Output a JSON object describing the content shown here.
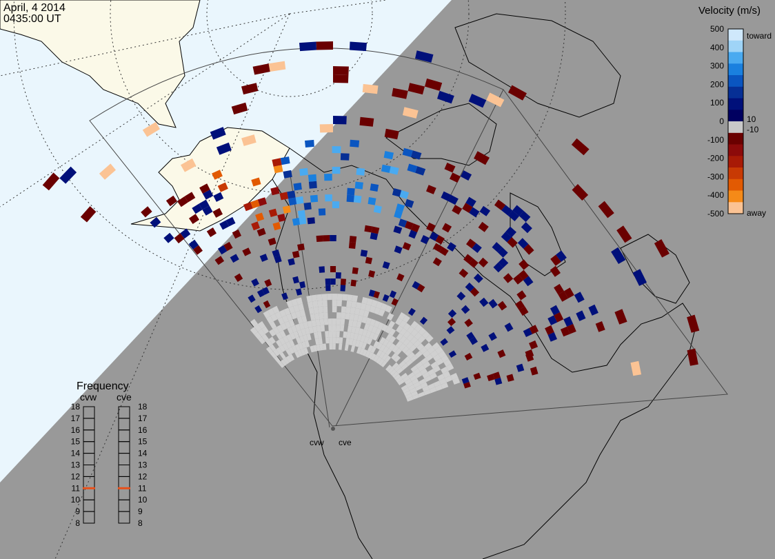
{
  "header": {
    "date": "April, 4 2014",
    "time": "0435:00 UT"
  },
  "colors": {
    "night": "#999999",
    "day_ocean": "#eaf6fd",
    "day_land": "#fbf9e8",
    "gate": "#d0d0d0",
    "grid": "#333333"
  },
  "colorbar": {
    "title": "Velocity (m/s)",
    "toward_label": "toward",
    "away_label": "away",
    "ticks": [
      "500",
      "400",
      "300",
      "200",
      "100",
      "0",
      "-100",
      "-200",
      "-300",
      "-400",
      "-500"
    ],
    "small_pos": "10",
    "small_neg": "-10",
    "colors": [
      "#cfe8fb",
      "#9fd4f7",
      "#4aaaf0",
      "#1a80df",
      "#0a55c0",
      "#062f95",
      "#00107a",
      "#000060",
      "#c9c9c9",
      "#6a0000",
      "#8c0a0a",
      "#a81a06",
      "#c83a04",
      "#e25a02",
      "#f58a18",
      "#fbc394"
    ]
  },
  "frequency": {
    "title": "Frequency",
    "radars": [
      "cvw",
      "cve"
    ],
    "levels": [
      "18",
      "17",
      "16",
      "15",
      "14",
      "13",
      "12",
      "11",
      "10",
      "9",
      "8"
    ],
    "current": [
      11,
      11
    ],
    "marker_color": "#e8501a"
  },
  "radar_labels": [
    "cvw",
    "cve"
  ]
}
